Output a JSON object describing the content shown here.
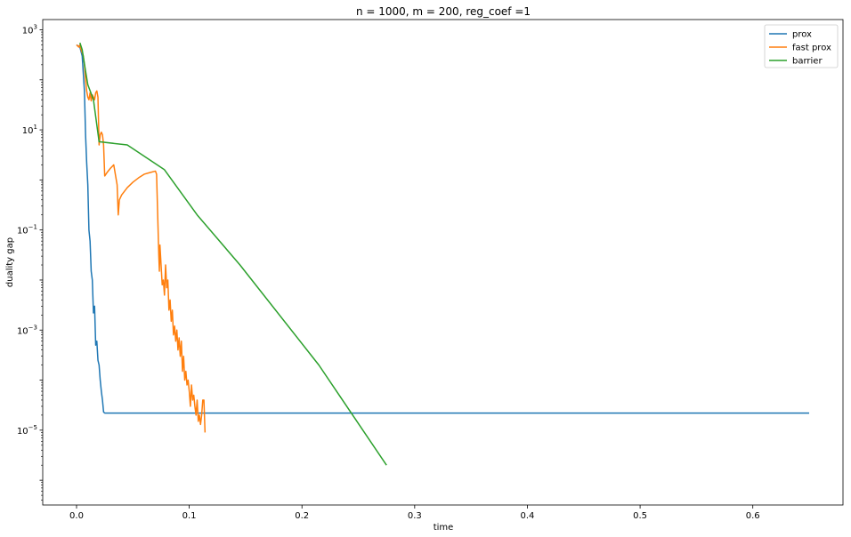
{
  "chart_data": {
    "type": "line",
    "title": "n = 1000, m = 200, reg_coef =1",
    "xlabel": "time",
    "ylabel": "duality gap",
    "y_scale": "log",
    "xlim": [
      -0.03,
      0.68
    ],
    "ylim": [
      3.2e-07,
      1600.0
    ],
    "x_ticks": [
      0.0,
      0.1,
      0.2,
      0.3,
      0.4,
      0.5,
      0.6
    ],
    "x_tick_labels": [
      "0.0",
      "0.1",
      "0.2",
      "0.3",
      "0.4",
      "0.5",
      "0.6"
    ],
    "y_ticks": [
      {
        "value": 1000.0,
        "base": "10",
        "exp": "3"
      },
      {
        "value": 10.0,
        "base": "10",
        "exp": "1"
      },
      {
        "value": 0.1,
        "base": "10",
        "exp": "−1"
      },
      {
        "value": 0.001,
        "base": "10",
        "exp": "−3"
      },
      {
        "value": 1e-05,
        "base": "10",
        "exp": "−5"
      }
    ],
    "grid": false,
    "legend_position": "top-right",
    "series": [
      {
        "name": "prox",
        "color": "#1f77b4",
        "x": [
          0.0,
          0.003,
          0.005,
          0.007,
          0.008,
          0.009,
          0.01,
          0.011,
          0.012,
          0.013,
          0.014,
          0.015,
          0.016,
          0.017,
          0.018,
          0.019,
          0.02,
          0.021,
          0.022,
          0.023,
          0.024,
          0.025,
          0.65
        ],
        "y": [
          500,
          450,
          300,
          60,
          8,
          2.2,
          0.8,
          0.1,
          0.06,
          0.015,
          0.01,
          0.0022,
          0.003,
          0.0005,
          0.0006,
          0.00025,
          0.0002,
          0.0001,
          6e-05,
          4e-05,
          2.3e-05,
          2.2e-05,
          2.2e-05
        ]
      },
      {
        "name": "fast prox",
        "color": "#ff7f0e",
        "x": [
          0.0,
          0.002,
          0.003,
          0.004,
          0.005,
          0.006,
          0.007,
          0.008,
          0.009,
          0.01,
          0.011,
          0.012,
          0.013,
          0.014,
          0.015,
          0.016,
          0.017,
          0.018,
          0.019,
          0.02,
          0.021,
          0.022,
          0.023,
          0.024,
          0.025,
          0.027,
          0.03,
          0.033,
          0.036,
          0.037,
          0.038,
          0.04,
          0.045,
          0.05,
          0.055,
          0.06,
          0.065,
          0.07,
          0.071,
          0.072,
          0.073,
          0.0735,
          0.074,
          0.075,
          0.076,
          0.077,
          0.078,
          0.079,
          0.08,
          0.081,
          0.082,
          0.083,
          0.084,
          0.085,
          0.086,
          0.087,
          0.088,
          0.089,
          0.09,
          0.091,
          0.092,
          0.093,
          0.094,
          0.095,
          0.096,
          0.097,
          0.098,
          0.099,
          0.1,
          0.101,
          0.102,
          0.103,
          0.104,
          0.105,
          0.106,
          0.107,
          0.108,
          0.109,
          0.11,
          0.111,
          0.112,
          0.113,
          0.114
        ],
        "y": [
          500,
          450,
          500,
          400,
          350,
          300,
          200,
          100,
          60,
          45,
          40,
          55,
          38,
          50,
          45,
          40,
          55,
          60,
          45,
          5,
          8,
          9,
          8,
          5,
          1.2,
          1.4,
          1.7,
          2.0,
          0.8,
          0.2,
          0.4,
          0.5,
          0.7,
          0.9,
          1.1,
          1.3,
          1.4,
          1.5,
          1.3,
          0.2,
          0.03,
          0.015,
          0.05,
          0.02,
          0.008,
          0.01,
          0.005,
          0.02,
          0.007,
          0.01,
          0.0025,
          0.004,
          0.0015,
          0.0025,
          0.0008,
          0.0012,
          0.0006,
          0.001,
          0.0004,
          0.0007,
          0.0003,
          0.0006,
          0.00015,
          0.0003,
          0.0001,
          0.00015,
          8e-05,
          0.0001,
          6e-05,
          3e-05,
          8e-05,
          4e-05,
          5e-05,
          3e-05,
          2e-05,
          4e-05,
          1.5e-05,
          2e-05,
          1.3e-05,
          2e-05,
          4e-05,
          4e-05,
          9e-06
        ]
      },
      {
        "name": "barrier",
        "color": "#2ca02c",
        "x": [
          0.003,
          0.005,
          0.008,
          0.01,
          0.015,
          0.02,
          0.045,
          0.078,
          0.107,
          0.145,
          0.215,
          0.275
        ],
        "y": [
          550,
          400,
          150,
          80,
          40,
          5.8,
          5.0,
          1.6,
          0.2,
          0.02,
          0.0002,
          2e-06
        ]
      }
    ]
  }
}
